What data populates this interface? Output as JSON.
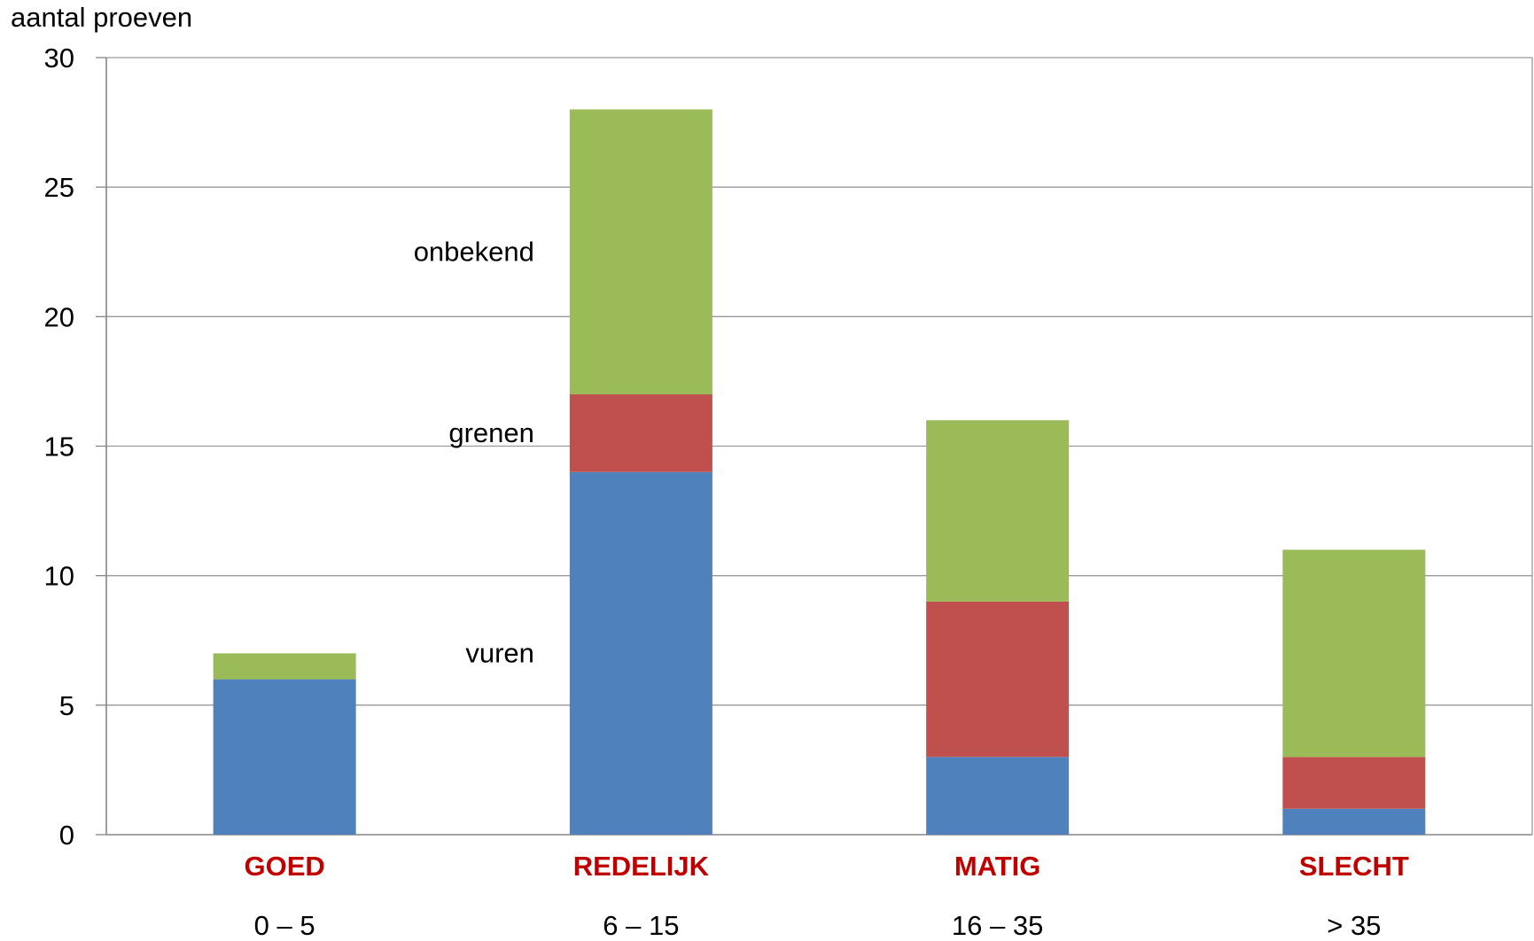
{
  "chart_data": {
    "type": "bar",
    "stacked": true,
    "title": "",
    "ylabel": "aantal proeven",
    "xlabel": "",
    "ylim": [
      0,
      30
    ],
    "yticks": [
      0,
      5,
      10,
      15,
      20,
      25,
      30
    ],
    "grid": true,
    "categories": [
      "GOED",
      "REDELIJK",
      "MATIG",
      "SLECHT"
    ],
    "category_ranges": [
      "0 – 5",
      "6 – 15",
      "16 – 35",
      "> 35"
    ],
    "category_label_color": "#C00000",
    "series": [
      {
        "name": "vuren",
        "color": "#4F81BD",
        "values": [
          6,
          14,
          3,
          1
        ]
      },
      {
        "name": "grenen",
        "color": "#C0504D",
        "values": [
          0,
          3,
          6,
          2
        ]
      },
      {
        "name": "onbekend",
        "color": "#9BBB59",
        "values": [
          1,
          11,
          7,
          8
        ]
      }
    ],
    "legend_placement": "inline-left-of-second-bar"
  }
}
